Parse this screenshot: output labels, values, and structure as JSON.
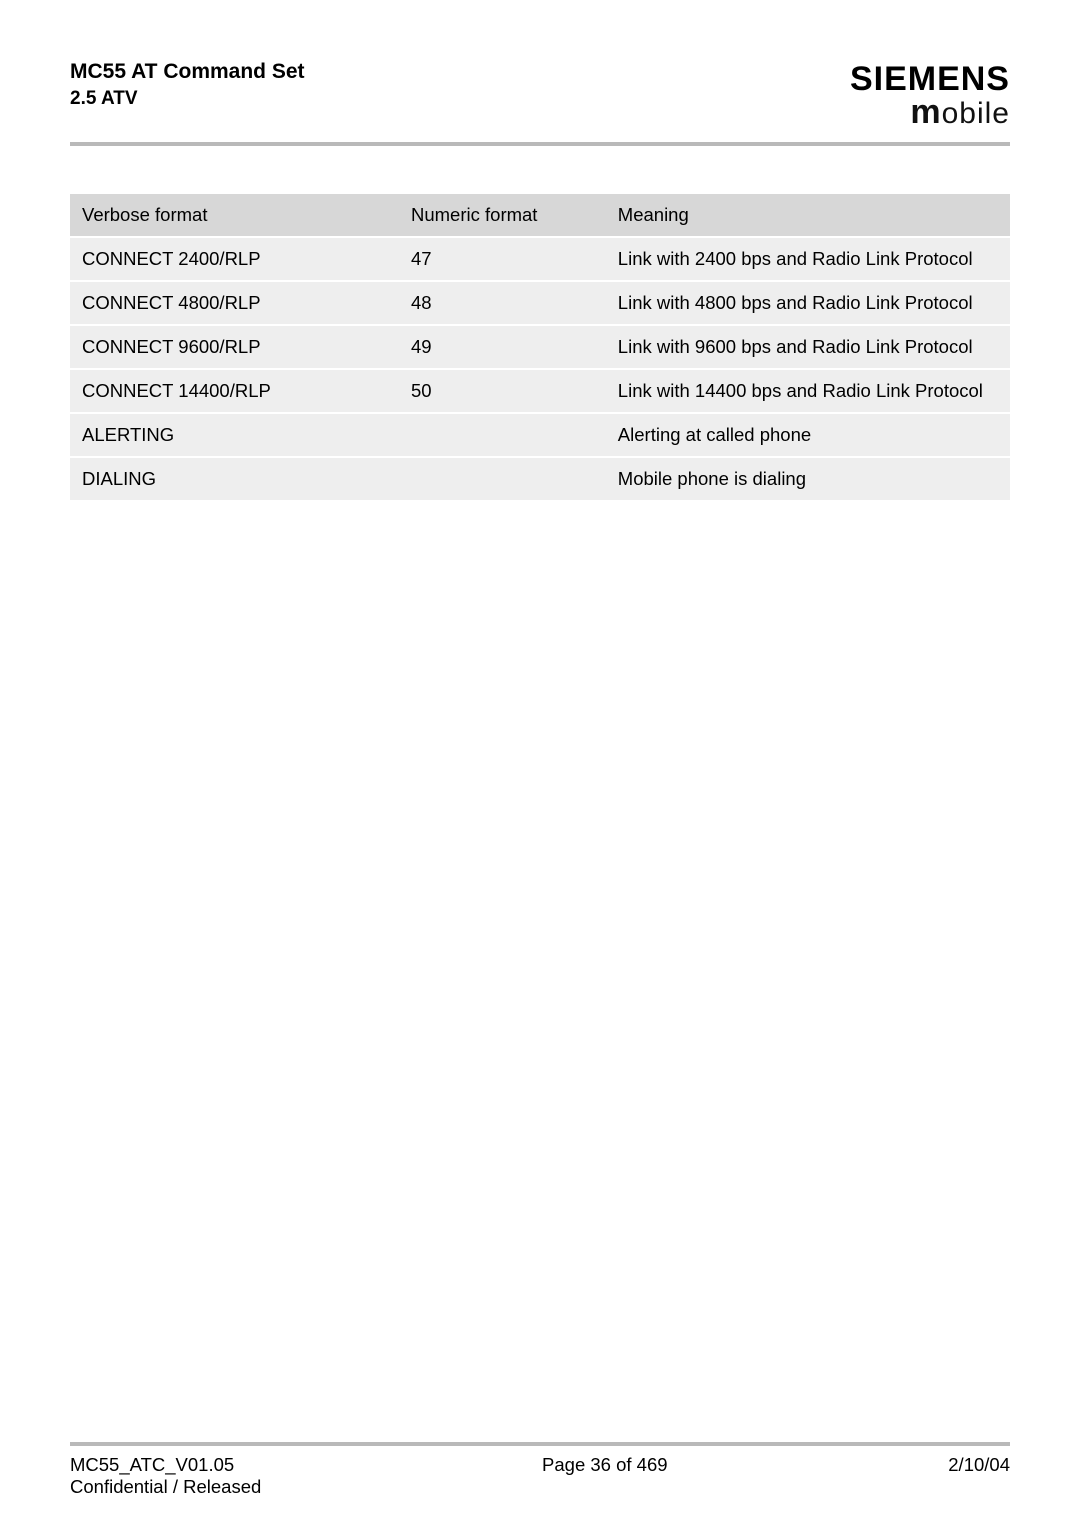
{
  "header": {
    "title": "MC55 AT Command Set",
    "section": "2.5 ATV",
    "brand_main": "SIEMENS",
    "brand_sub_m": "m",
    "brand_sub_rest": "obile"
  },
  "table": {
    "columns": [
      "Verbose format",
      "Numeric format",
      "Meaning"
    ],
    "rows": [
      [
        "CONNECT 2400/RLP",
        "47",
        "Link with 2400 bps and Radio Link Protocol"
      ],
      [
        "CONNECT 4800/RLP",
        "48",
        "Link with 4800 bps and Radio Link Protocol"
      ],
      [
        "CONNECT 9600/RLP",
        "49",
        "Link with 9600 bps and Radio Link Protocol"
      ],
      [
        "CONNECT 14400/RLP",
        "50",
        "Link with 14400 bps and Radio Link Protocol"
      ],
      [
        "ALERTING",
        "",
        "Alerting at called phone"
      ],
      [
        "DIALING",
        "",
        "Mobile phone is dialing"
      ]
    ],
    "header_bg": "#d7d7d7",
    "row_bg": "#eeeeee",
    "row_gap_color": "#ffffff",
    "font_size": 18.5,
    "col_widths": [
      "35%",
      "22%",
      "43%"
    ]
  },
  "footer": {
    "doc_id": "MC55_ATC_V01.05",
    "confidentiality": "Confidential / Released",
    "page": "Page 36 of 469",
    "date": "2/10/04"
  },
  "colors": {
    "rule": "#b9b9b9",
    "text": "#000000",
    "background": "#ffffff"
  }
}
